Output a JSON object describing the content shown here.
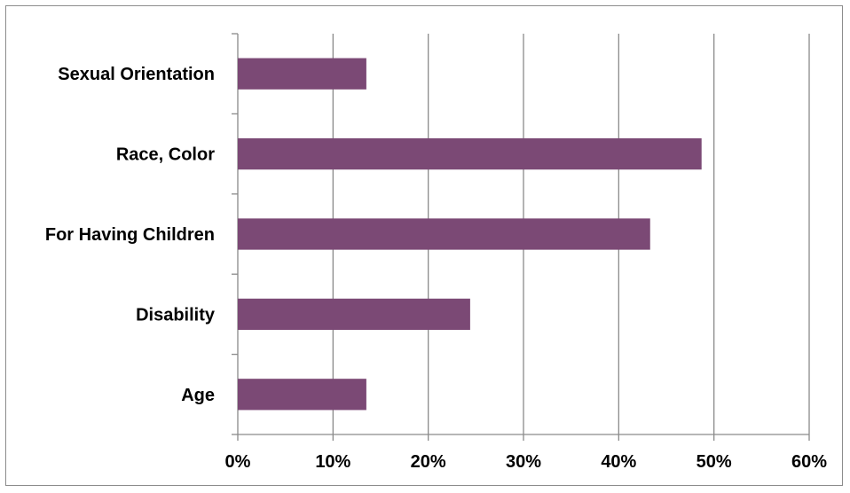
{
  "chart_data": {
    "type": "bar",
    "orientation": "horizontal",
    "categories": [
      "Sexual Orientation",
      "Race, Color",
      "For Having Children",
      "Disability",
      "Age"
    ],
    "values": [
      13.5,
      48.7,
      43.3,
      24.4,
      13.5
    ],
    "xlim": [
      0,
      60
    ],
    "xticks": [
      "0%",
      "10%",
      "20%",
      "30%",
      "40%",
      "50%",
      "60%"
    ],
    "grid": "vertical",
    "legend": "none",
    "bar_color": "#7b4975"
  }
}
